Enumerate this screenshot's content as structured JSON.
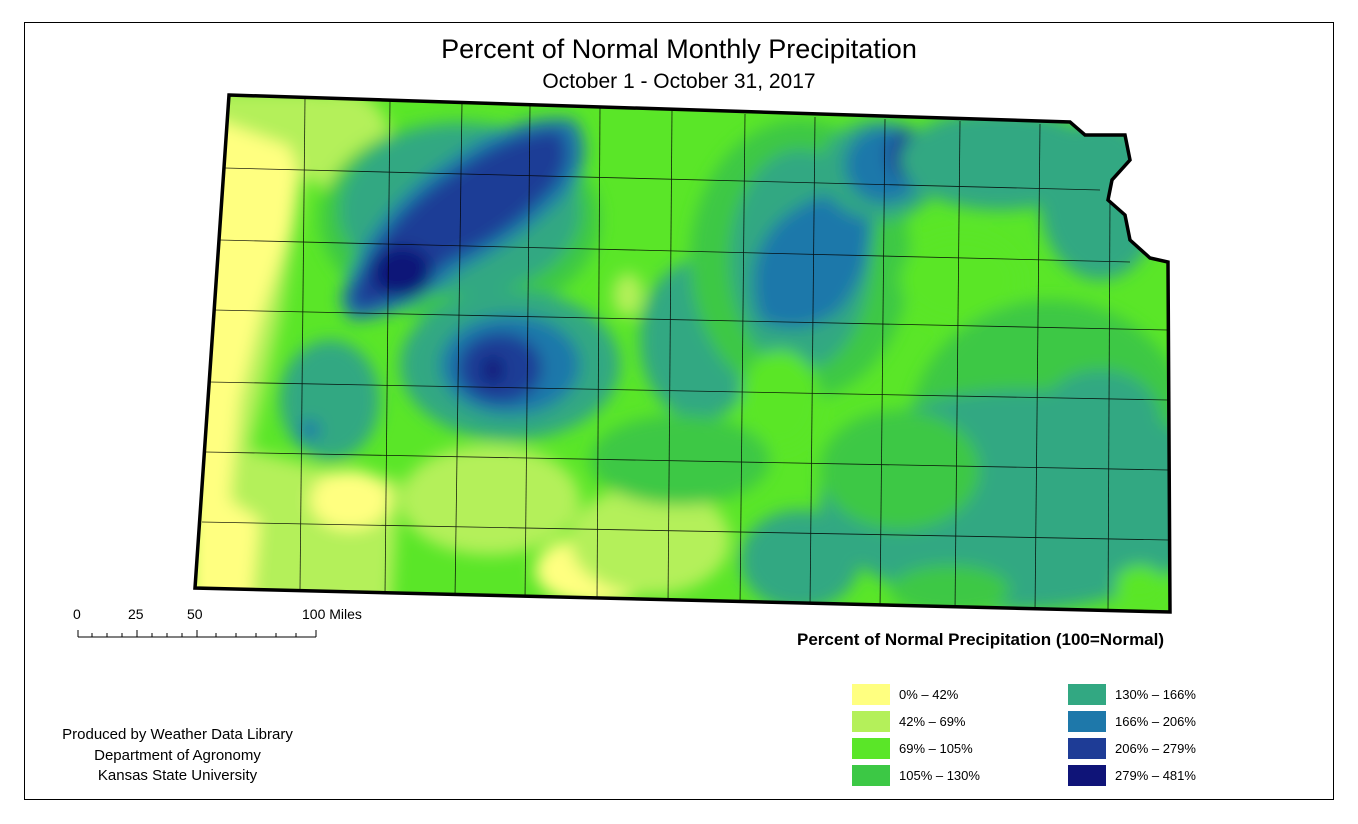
{
  "map": {
    "title": "Percent of Normal Monthly Precipitation",
    "subtitle": "October 1 - October 31, 2017"
  },
  "legend": {
    "heading": "Percent of Normal Precipitation (100=Normal)",
    "items": [
      {
        "label": "0% – 42%",
        "color": "#ffff80"
      },
      {
        "label": "42% – 69%",
        "color": "#b4f05a"
      },
      {
        "label": "69% – 105%",
        "color": "#5ae628"
      },
      {
        "label": "105% – 130%",
        "color": "#3cc845"
      },
      {
        "label": "130% – 166%",
        "color": "#32a882"
      },
      {
        "label": "166% – 206%",
        "color": "#1e78aa"
      },
      {
        "label": "206% – 279%",
        "color": "#1e3c96"
      },
      {
        "label": "279% – 481%",
        "color": "#0f1478"
      }
    ]
  },
  "scale_bar": {
    "labels": [
      "0",
      "25",
      "50",
      "100 Miles"
    ]
  },
  "credits": {
    "line1": "Produced by Weather Data Library",
    "line2": "Department of Agronomy",
    "line3": "Kansas State University"
  }
}
